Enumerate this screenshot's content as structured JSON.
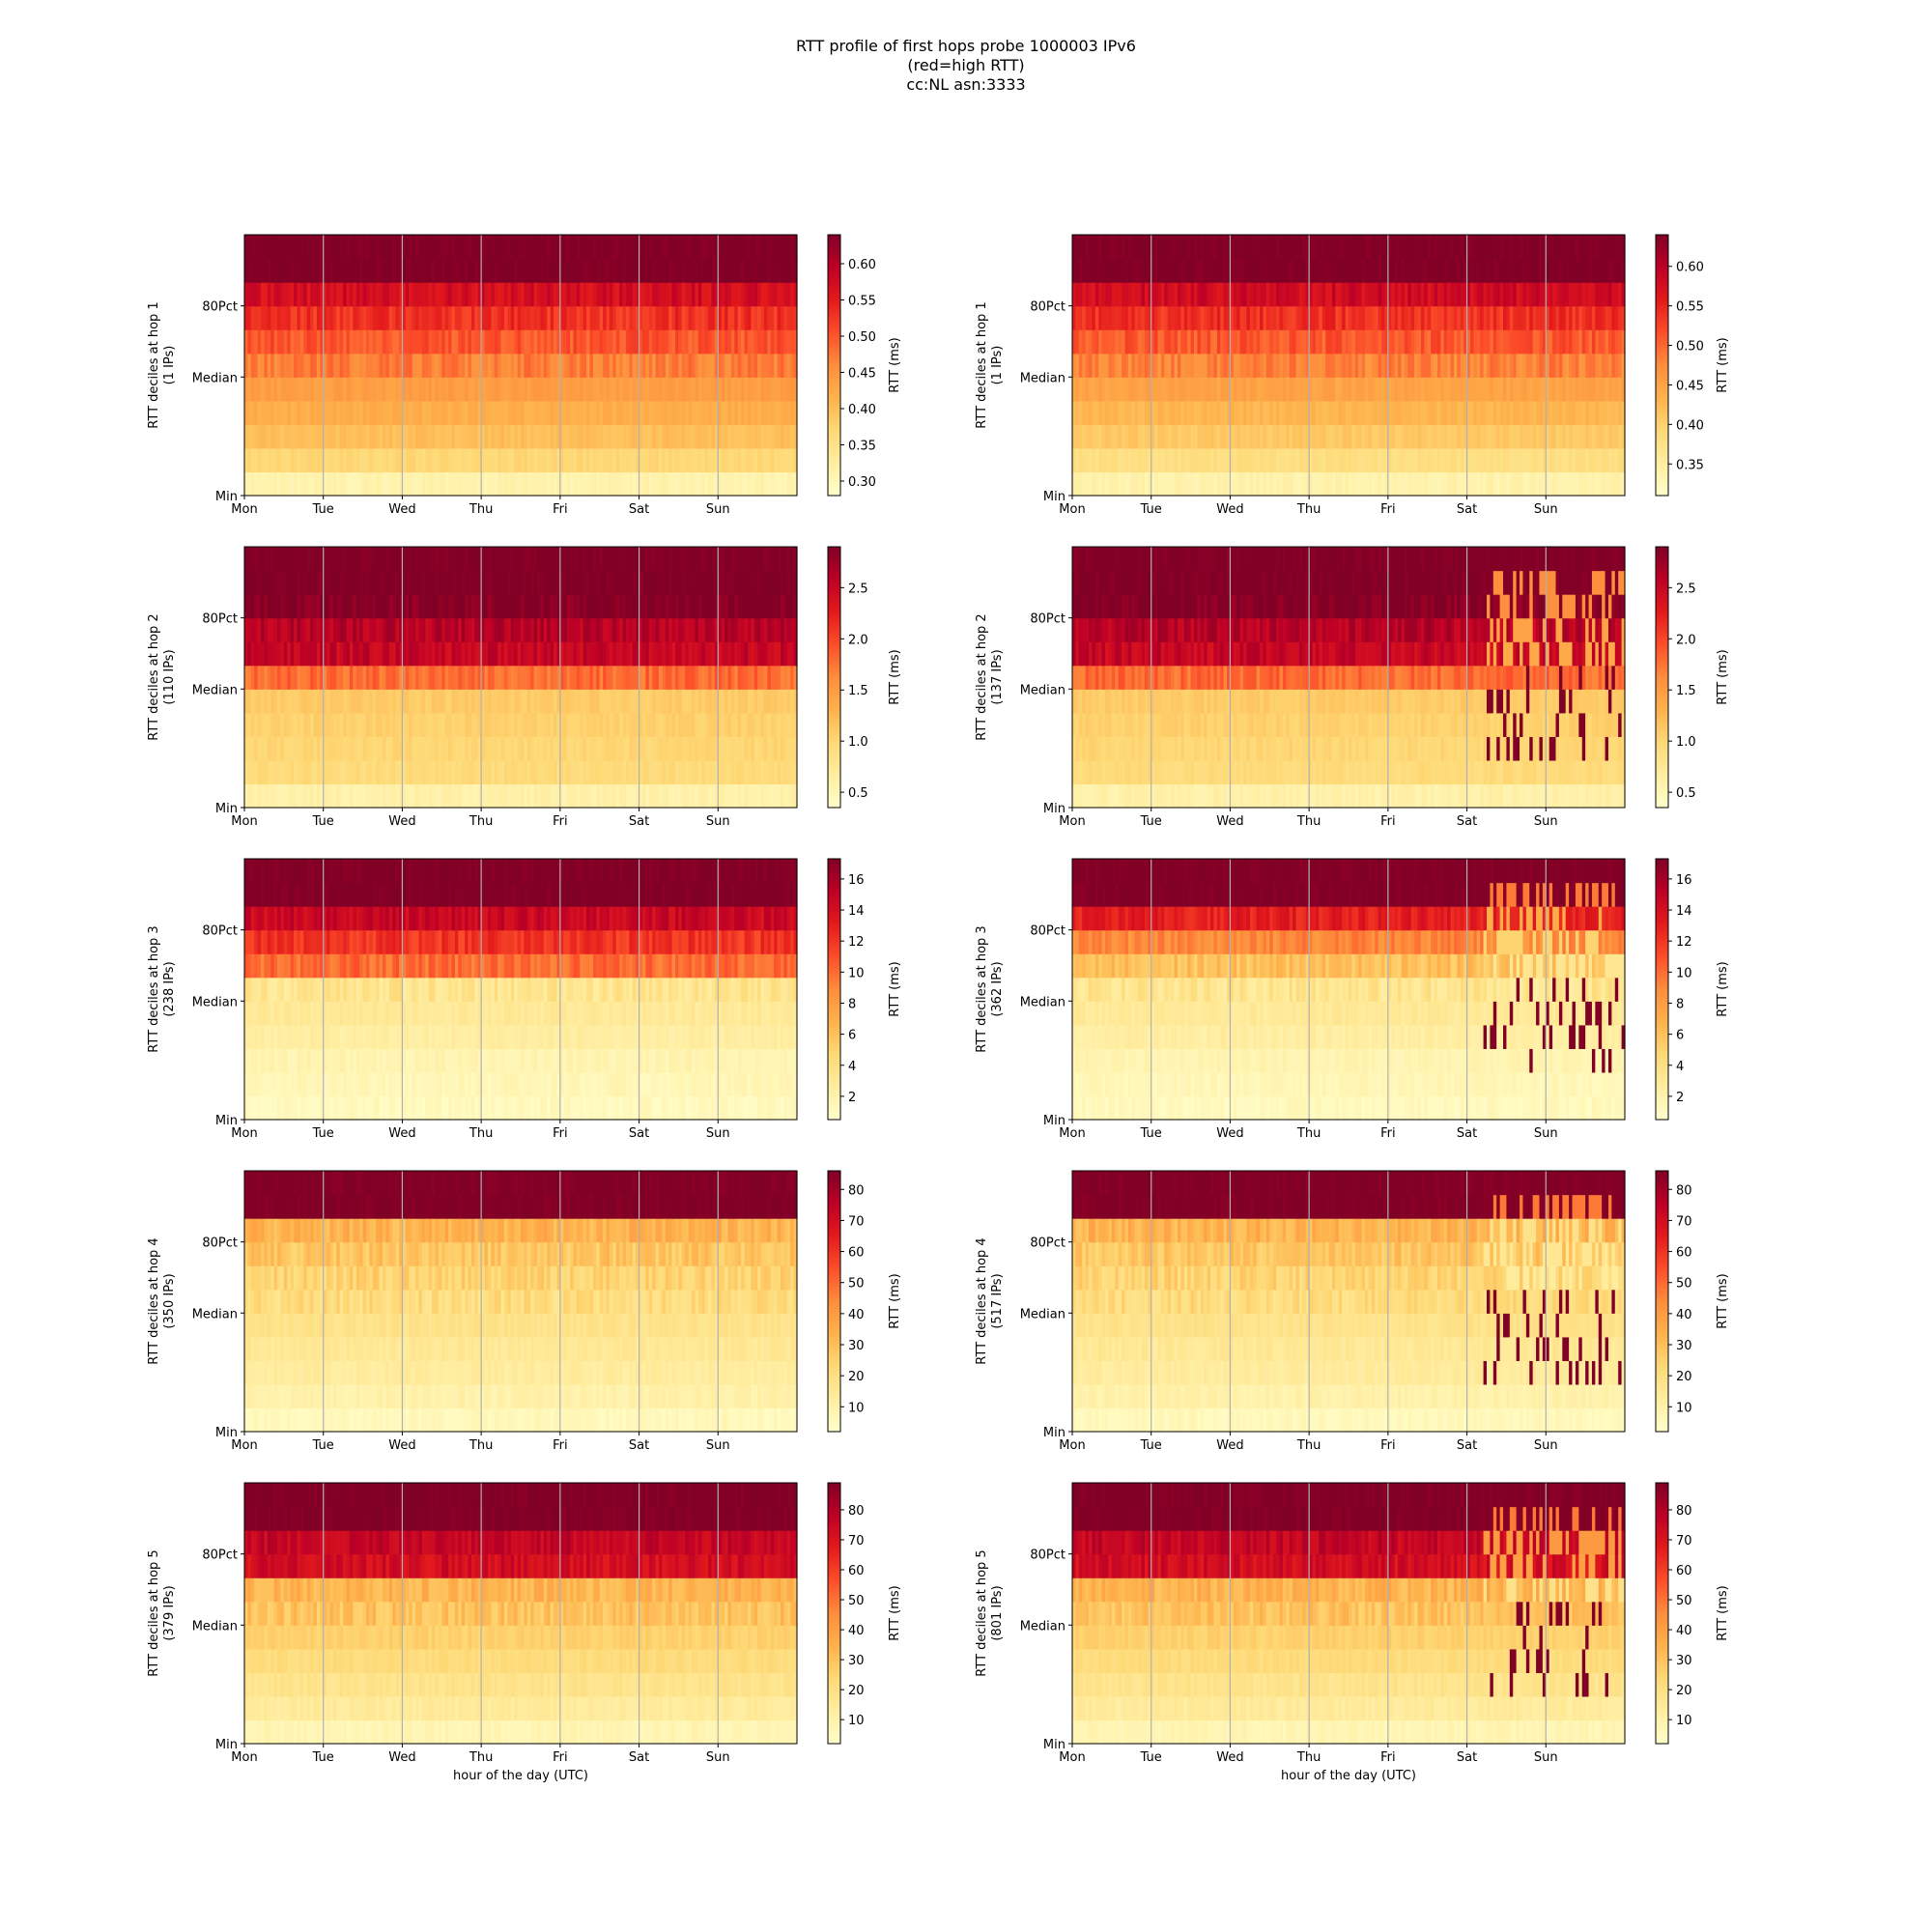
{
  "title_lines": [
    "RTT profile of first hops probe 1000003 IPv6",
    "(red=high RTT)",
    "cc:NL asn:3333"
  ],
  "xlabel": "hour of the day (UTC)",
  "colorbar_label": "RTT (ms)",
  "colormap": [
    "#ffffcc",
    "#ffeda0",
    "#fed976",
    "#feb24c",
    "#fd8d3c",
    "#fc4e2a",
    "#e31a1c",
    "#bd0026",
    "#800026"
  ],
  "chart_data": [
    {
      "type": "heatmap",
      "ylabel": "RTT deciles at hop 1",
      "ips": "(1 IPs)",
      "x_ticks": [
        "Mon",
        "Tue",
        "Wed",
        "Thu",
        "Fri",
        "Sat",
        "Sun"
      ],
      "y_ticks": [
        "Min",
        "Median",
        "80Pct"
      ],
      "colorbar_ticks": [
        "0.30",
        "0.35",
        "0.40",
        "0.45",
        "0.50",
        "0.55",
        "0.60"
      ],
      "color_range": [
        0.28,
        0.64
      ],
      "profile": [
        0.31,
        0.37,
        0.4,
        0.42,
        0.44,
        0.47,
        0.5,
        0.53,
        0.57,
        0.64,
        0.64
      ],
      "volatility": "low"
    },
    {
      "type": "heatmap",
      "ylabel": "RTT deciles at hop 1",
      "ips": "(1 IPs)",
      "x_ticks": [
        "Mon",
        "Tue",
        "Wed",
        "Thu",
        "Fri",
        "Sat",
        "Sun"
      ],
      "y_ticks": [
        "Min",
        "Median",
        "80Pct"
      ],
      "colorbar_ticks": [
        "0.35",
        "0.40",
        "0.45",
        "0.50",
        "0.55",
        "0.60"
      ],
      "color_range": [
        0.31,
        0.64
      ],
      "profile": [
        0.34,
        0.38,
        0.41,
        0.43,
        0.45,
        0.48,
        0.51,
        0.54,
        0.58,
        0.64,
        0.64
      ],
      "volatility": "low"
    },
    {
      "type": "heatmap",
      "ylabel": "RTT deciles at hop 2",
      "ips": "(110 IPs)",
      "x_ticks": [
        "Mon",
        "Tue",
        "Wed",
        "Thu",
        "Fri",
        "Sat",
        "Sun"
      ],
      "y_ticks": [
        "Min",
        "Median",
        "80Pct"
      ],
      "colorbar_ticks": [
        "0.5",
        "1.0",
        "1.5",
        "2.0",
        "2.5"
      ],
      "color_range": [
        0.35,
        2.9
      ],
      "profile": [
        0.6,
        0.95,
        1.0,
        1.05,
        1.1,
        1.8,
        2.5,
        2.6,
        2.9,
        2.9,
        2.9
      ],
      "volatility": "low"
    },
    {
      "type": "heatmap",
      "ylabel": "RTT deciles at hop 2",
      "ips": "(137 IPs)",
      "x_ticks": [
        "Mon",
        "Tue",
        "Wed",
        "Thu",
        "Fri",
        "Sat",
        "Sun"
      ],
      "y_ticks": [
        "Min",
        "Median",
        "80Pct"
      ],
      "colorbar_ticks": [
        "0.5",
        "1.0",
        "1.5",
        "2.0",
        "2.5"
      ],
      "color_range": [
        0.35,
        2.9
      ],
      "profile": [
        0.6,
        0.95,
        1.0,
        1.05,
        1.1,
        1.8,
        2.5,
        2.6,
        2.9,
        2.9,
        2.9
      ],
      "volatility": "high"
    },
    {
      "type": "heatmap",
      "ylabel": "RTT deciles at hop 3",
      "ips": "(238 IPs)",
      "x_ticks": [
        "Mon",
        "Tue",
        "Wed",
        "Thu",
        "Fri",
        "Sat",
        "Sun"
      ],
      "y_ticks": [
        "Min",
        "Median",
        "80Pct"
      ],
      "colorbar_ticks": [
        "2",
        "4",
        "6",
        "8",
        "10",
        "12",
        "14",
        "16"
      ],
      "color_range": [
        0.5,
        17.3
      ],
      "profile": [
        1.2,
        1.5,
        1.8,
        2.5,
        3.0,
        3.5,
        10.0,
        12.0,
        14.5,
        17.3,
        17.3
      ],
      "volatility": "low"
    },
    {
      "type": "heatmap",
      "ylabel": "RTT deciles at hop 3",
      "ips": "(362 IPs)",
      "x_ticks": [
        "Mon",
        "Tue",
        "Wed",
        "Thu",
        "Fri",
        "Sat",
        "Sun"
      ],
      "y_ticks": [
        "Min",
        "Median",
        "80Pct"
      ],
      "colorbar_ticks": [
        "2",
        "4",
        "6",
        "8",
        "10",
        "12",
        "14",
        "16"
      ],
      "color_range": [
        0.5,
        17.3
      ],
      "profile": [
        1.2,
        1.5,
        1.8,
        2.5,
        3.0,
        3.5,
        6.0,
        9.0,
        13.0,
        17.3,
        17.3
      ],
      "volatility": "high"
    },
    {
      "type": "heatmap",
      "ylabel": "RTT deciles at hop 4",
      "ips": "(350 IPs)",
      "x_ticks": [
        "Mon",
        "Tue",
        "Wed",
        "Thu",
        "Fri",
        "Sat",
        "Sun"
      ],
      "y_ticks": [
        "Min",
        "Median",
        "80Pct"
      ],
      "colorbar_ticks": [
        "10",
        "20",
        "30",
        "40",
        "50",
        "60",
        "70",
        "80"
      ],
      "color_range": [
        2,
        86
      ],
      "profile": [
        6,
        10,
        13,
        15,
        18,
        21,
        24,
        28,
        33,
        86,
        86
      ],
      "volatility": "low"
    },
    {
      "type": "heatmap",
      "ylabel": "RTT deciles at hop 4",
      "ips": "(517 IPs)",
      "x_ticks": [
        "Mon",
        "Tue",
        "Wed",
        "Thu",
        "Fri",
        "Sat",
        "Sun"
      ],
      "y_ticks": [
        "Min",
        "Median",
        "80Pct"
      ],
      "colorbar_ticks": [
        "10",
        "20",
        "30",
        "40",
        "50",
        "60",
        "70",
        "80"
      ],
      "color_range": [
        2,
        86
      ],
      "profile": [
        6,
        10,
        13,
        15,
        18,
        21,
        24,
        28,
        33,
        86,
        86
      ],
      "volatility": "high"
    },
    {
      "type": "heatmap",
      "ylabel": "RTT deciles at hop 5",
      "ips": "(379 IPs)",
      "x_ticks": [
        "Mon",
        "Tue",
        "Wed",
        "Thu",
        "Fri",
        "Sat",
        "Sun"
      ],
      "y_ticks": [
        "Min",
        "Median",
        "80Pct"
      ],
      "colorbar_ticks": [
        "10",
        "20",
        "30",
        "40",
        "50",
        "60",
        "70",
        "80"
      ],
      "color_range": [
        2,
        89
      ],
      "profile": [
        8,
        14,
        18,
        22,
        26,
        30,
        34,
        72,
        76,
        89,
        89
      ],
      "volatility": "low"
    },
    {
      "type": "heatmap",
      "ylabel": "RTT deciles at hop 5",
      "ips": "(801 IPs)",
      "x_ticks": [
        "Mon",
        "Tue",
        "Wed",
        "Thu",
        "Fri",
        "Sat",
        "Sun"
      ],
      "y_ticks": [
        "Min",
        "Median",
        "80Pct"
      ],
      "colorbar_ticks": [
        "10",
        "20",
        "30",
        "40",
        "50",
        "60",
        "70",
        "80"
      ],
      "color_range": [
        2,
        89
      ],
      "profile": [
        8,
        14,
        18,
        22,
        26,
        30,
        34,
        72,
        76,
        89,
        89
      ],
      "volatility": "high"
    }
  ]
}
